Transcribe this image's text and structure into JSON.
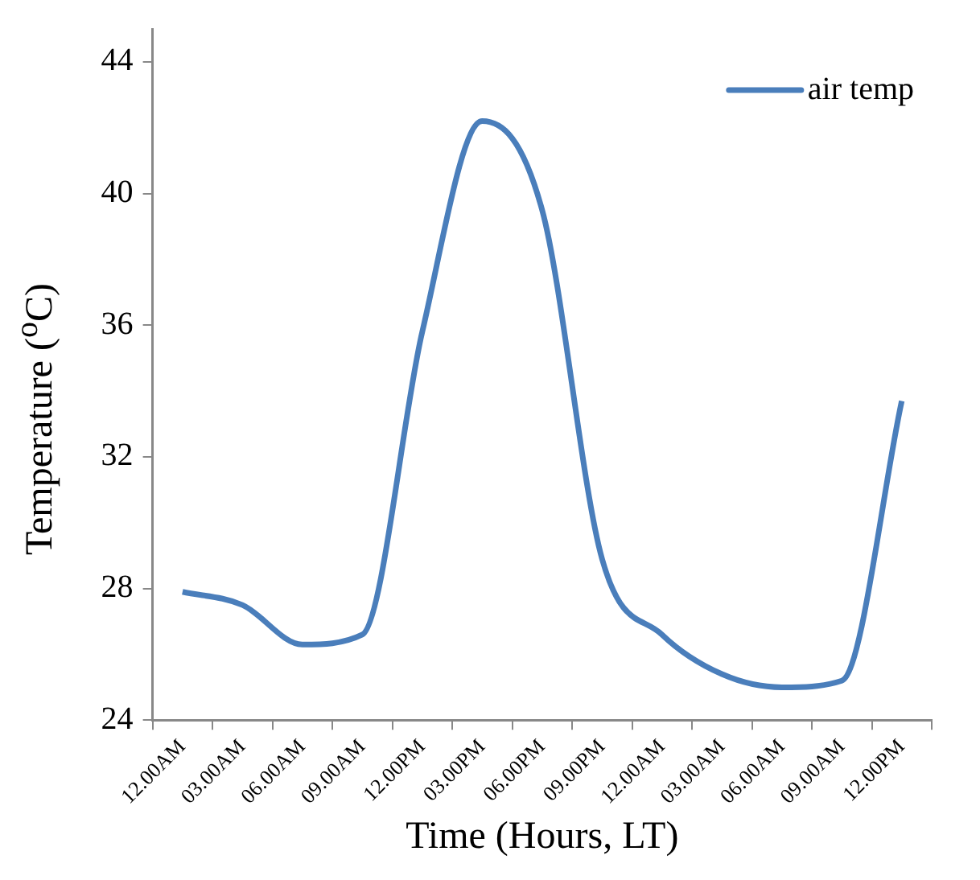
{
  "chart_data": {
    "type": "line",
    "xlabel": "Time (Hours, LT)",
    "ylabel": "Temperature ($^{o}$C)",
    "categories": [
      "12.00AM",
      "03.00AM",
      "06.00AM",
      "09.00AM",
      "12.00PM",
      "03.00PM",
      "06.00PM",
      "09.00PM",
      "12.00AM",
      "03.00AM",
      "06.00AM",
      "09.00AM",
      "12.00PM"
    ],
    "series": [
      {
        "name": "air temp",
        "color": "#4a7ebb",
        "values": [
          27.9,
          27.5,
          26.3,
          26.6,
          35.8,
          42.2,
          39.5,
          28.9,
          26.6,
          25.4,
          25.0,
          25.2,
          33.7
        ]
      }
    ],
    "ylim": [
      24,
      45
    ],
    "yticks": [
      24,
      28,
      32,
      36,
      40,
      44
    ],
    "grid": false,
    "legend": "top right",
    "marker": "none",
    "line_style": "solid"
  }
}
